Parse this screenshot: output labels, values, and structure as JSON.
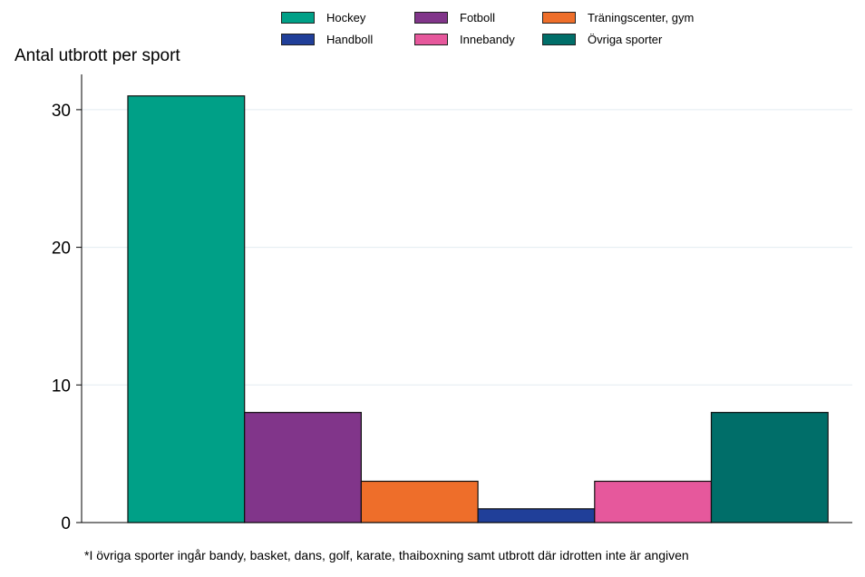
{
  "chart_data": {
    "type": "bar",
    "ylabel": "Antal utbrott per sport",
    "ylim": [
      0,
      32.5
    ],
    "yticks": [
      0,
      10,
      20,
      30
    ],
    "grid": true,
    "legend_position": "top",
    "categories": [
      "Hockey",
      "Fotboll",
      "Träningscenter, gym",
      "Handboll",
      "Innebandy",
      "Övriga sporter"
    ],
    "series": [
      {
        "name": "Hockey",
        "value": 31,
        "color": "#00a087"
      },
      {
        "name": "Fotboll",
        "value": 8,
        "color": "#81358a"
      },
      {
        "name": "Träningscenter, gym",
        "value": 3,
        "color": "#ee6e2a"
      },
      {
        "name": "Handboll",
        "value": 1,
        "color": "#203f99"
      },
      {
        "name": "Innebandy",
        "value": 3,
        "color": "#e6589c"
      },
      {
        "name": "Övriga sporter",
        "value": 8,
        "color": "#006e69"
      }
    ],
    "legend_order": [
      "Hockey",
      "Fotboll",
      "Träningscenter, gym",
      "Handboll",
      "Innebandy",
      "Övriga sporter"
    ]
  },
  "footnote": "*I övriga sporter ingår bandy, basket, dans, golf, karate, thaiboxning samt utbrott där idrotten inte är angiven"
}
